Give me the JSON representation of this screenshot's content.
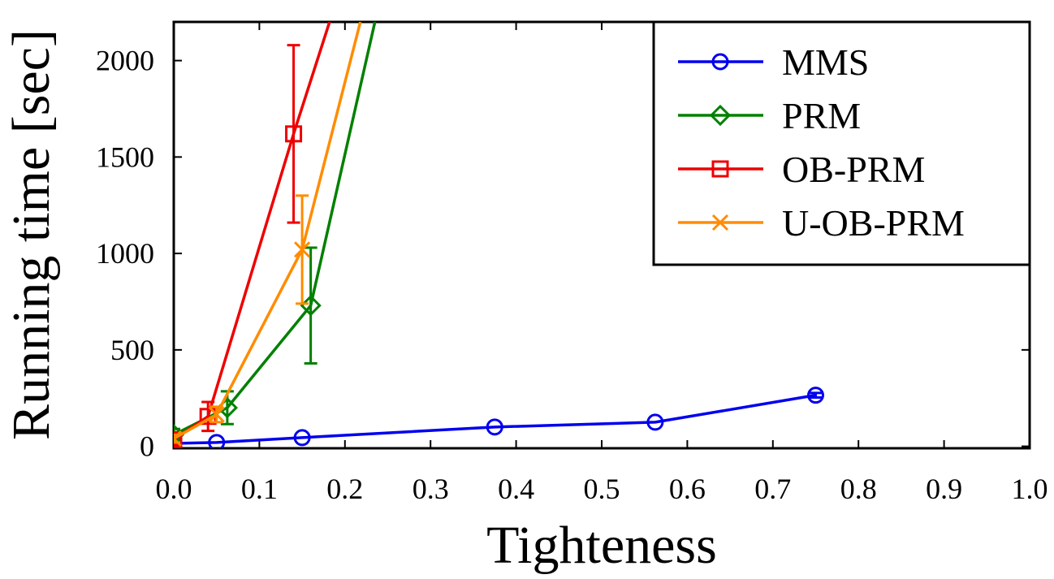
{
  "chart_data": {
    "type": "line",
    "title": "",
    "xlabel": "Tighteness",
    "ylabel": "Running time [sec]",
    "xlim": [
      0.0,
      1.0
    ],
    "ylim": [
      0,
      2200
    ],
    "xticks": [
      0.0,
      0.1,
      0.2,
      0.3,
      0.4,
      0.5,
      0.6,
      0.7,
      0.8,
      0.9,
      1.0
    ],
    "xtick_labels": [
      "0.0",
      "0.1",
      "0.2",
      "0.3",
      "0.4",
      "0.5",
      "0.6",
      "0.7",
      "0.8",
      "0.9",
      "1.0"
    ],
    "yticks": [
      0,
      500,
      1000,
      1500,
      2000
    ],
    "ytick_labels": [
      "0",
      "500",
      "1000",
      "1500",
      "2000"
    ],
    "grid": false,
    "legend_position": "top-right",
    "series": [
      {
        "name": "MMS",
        "color": "#0000ee",
        "marker": "circle",
        "x": [
          0.0,
          0.05,
          0.15,
          0.375,
          0.5625,
          0.75
        ],
        "y": [
          15,
          20,
          45,
          100,
          125,
          265
        ],
        "err": [
          0,
          0,
          0,
          0,
          0,
          12
        ],
        "extends_to": null
      },
      {
        "name": "PRM",
        "color": "#008000",
        "marker": "diamond",
        "x": [
          0.0,
          0.0625,
          0.16
        ],
        "y": [
          60,
          200,
          730
        ],
        "err": [
          30,
          85,
          300
        ],
        "extends_to": [
          0.235,
          2200
        ]
      },
      {
        "name": "OB-PRM",
        "color": "#ee0000",
        "marker": "square",
        "x": [
          0.0,
          0.04,
          0.14
        ],
        "y": [
          35,
          155,
          1620
        ],
        "err": [
          25,
          75,
          460
        ],
        "extends_to": [
          0.182,
          2200
        ]
      },
      {
        "name": "U-OB-PRM",
        "color": "#ff8c00",
        "marker": "x",
        "x": [
          0.0,
          0.05,
          0.15
        ],
        "y": [
          40,
          165,
          1020
        ],
        "err": [
          20,
          40,
          280
        ],
        "extends_to": [
          0.218,
          2200
        ]
      }
    ]
  }
}
